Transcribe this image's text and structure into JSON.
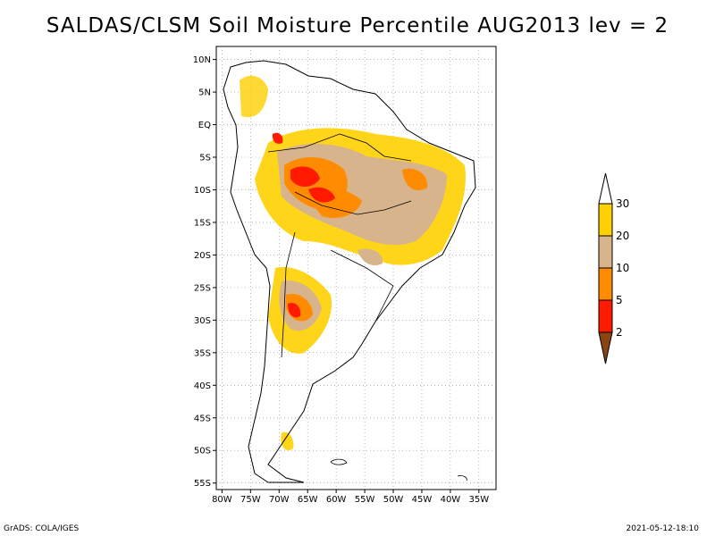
{
  "title": "SALDAS/CLSM Soil Moisture Percentile AUG2013 lev = 2",
  "footer": {
    "left": "GrADS: COLA/IGES",
    "right": "2021-05-12-18:10"
  },
  "map": {
    "lat_ticks": [
      "10N",
      "5N",
      "EQ",
      "5S",
      "10S",
      "15S",
      "20S",
      "25S",
      "30S",
      "35S",
      "40S",
      "45S",
      "50S",
      "55S"
    ],
    "lat_values": [
      10,
      5,
      0,
      -5,
      -10,
      -15,
      -20,
      -25,
      -30,
      -35,
      -40,
      -45,
      -50,
      -55
    ],
    "lon_ticks": [
      "80W",
      "75W",
      "70W",
      "65W",
      "60W",
      "55W",
      "50W",
      "45W",
      "40W",
      "35W"
    ],
    "lon_values": [
      -80,
      -75,
      -70,
      -65,
      -60,
      -55,
      -50,
      -45,
      -40,
      -35
    ],
    "lon_range": [
      -81,
      -32
    ],
    "lat_range": [
      -56,
      12
    ]
  },
  "legend": {
    "labels": [
      "2",
      "5",
      "10",
      "20",
      "30"
    ],
    "colors": [
      "#8b4513",
      "#ff1a00",
      "#ff8c00",
      "#d8b48c",
      "#ffd000",
      "#ffffff"
    ]
  }
}
